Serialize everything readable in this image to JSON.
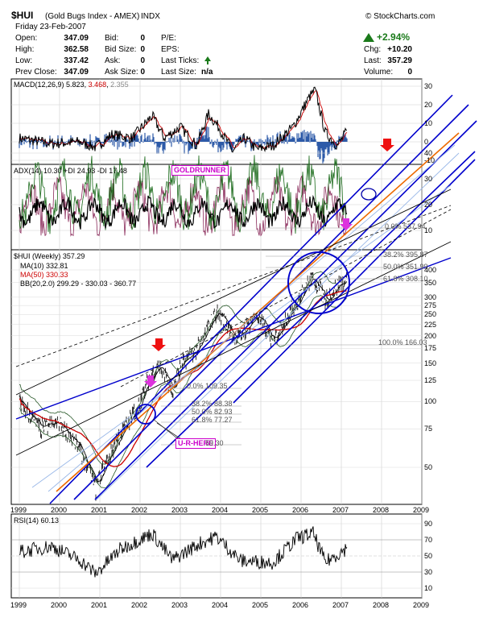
{
  "header": {
    "symbol": "$HUI",
    "name": "(Gold Bugs Index - AMEX)",
    "exchange": "INDX",
    "brand": "© StockCharts.com"
  },
  "quote": {
    "date": "Friday 23-Feb-2007",
    "rows": [
      [
        "Open:",
        "347.09",
        "Bid:",
        "0",
        "P/E:",
        ""
      ],
      [
        "High:",
        "362.58",
        "Bid Size:",
        "0",
        "EPS:",
        ""
      ],
      [
        "Low:",
        "337.42",
        "Ask:",
        "0",
        "Last Ticks:",
        ""
      ],
      [
        "Prev Close:",
        "347.09",
        "Ask Size:",
        "0",
        "Last Size:",
        "n/a"
      ]
    ],
    "change_pct": "+2.94%",
    "right_rows": [
      [
        "Chg:",
        "+10.20"
      ],
      [
        "Last:",
        "357.29"
      ],
      [
        "Volume:",
        "0"
      ]
    ],
    "colors": {
      "up": "#1a7a1a"
    }
  },
  "panels": {
    "macd": {
      "label_prefix": "MACD(12,26,9)",
      "v1": "5.823",
      "v2": "3.468",
      "v3": "2.355",
      "ticks": [
        30,
        20,
        10,
        0,
        -10
      ],
      "colors": {
        "macd": "#000000",
        "signal": "#cc0000",
        "hist": "#2d5aa8"
      }
    },
    "adx": {
      "label": "ADX(14) 10.30 +DI 24.93 -DI 17.48",
      "ticks": [
        40,
        30,
        20,
        10
      ],
      "colors": {
        "adx": "#000000",
        "plus_di": "#1a6a1a",
        "minus_di": "#8a2a5a"
      }
    },
    "price": {
      "label": "$HUI (Weekly) 357.29",
      "ma10": "MA(10) 332.81",
      "ma50": "MA(50) 330.33",
      "bb": "BB(20,2.0) 299.29 - 330.03 - 360.77",
      "ticks": [
        400,
        350,
        300,
        275,
        250,
        225,
        200,
        175,
        150,
        125,
        100,
        75,
        50
      ],
      "colors": {
        "price": "#000000",
        "ma10": "#000000",
        "ma50": "#cc0000",
        "bb": "#2a5a2a"
      }
    },
    "rsi": {
      "label": "RSI(14) 60.13",
      "ticks": [
        90,
        70,
        50,
        30,
        10
      ]
    }
  },
  "annotations": {
    "goldrunner": "GOLDRUNNER",
    "u_r_here": "U-R-HERE",
    "colors": {
      "tag": "#cc00cc",
      "channel": "#0000cc",
      "orange": "#ee6a00",
      "red_arrow": "#ee1111",
      "magenta_arrow": "#dd33dd"
    }
  },
  "fib_labels": [
    {
      "text": "0.0% 537.94"
    },
    {
      "text": "38.2% 395.87"
    },
    {
      "text": "50.0% 351.99"
    },
    {
      "text": "61.8% 308.10"
    },
    {
      "text": "100.0% 166.03"
    },
    {
      "text": "0.0% 109.35"
    },
    {
      "text": "38.2% 88.38"
    },
    {
      "text": "50.0% 82.93"
    },
    {
      "text": "61.8% 77.27"
    },
    {
      "text": "59.30"
    }
  ],
  "x_labels": [
    "1999",
    "2000",
    "2001",
    "2002",
    "2003",
    "2004",
    "2005",
    "2006",
    "2007",
    "2008",
    "2009"
  ],
  "chart_data": {
    "type": "line",
    "title": "$HUI (Gold Bugs Index - AMEX) INDX",
    "x_range": [
      "1999",
      "2009"
    ],
    "y_scale": "log",
    "y_range": [
      30,
      600
    ],
    "series": [
      {
        "name": "$HUI (Weekly)",
        "x": [
          1999.0,
          1999.5,
          2000.0,
          2000.5,
          2000.9,
          2001.3,
          2001.8,
          2002.0,
          2002.45,
          2002.8,
          2003.0,
          2003.5,
          2003.9,
          2004.2,
          2004.4,
          2004.9,
          2005.3,
          2005.9,
          2006.3,
          2006.6,
          2006.9,
          2007.15
        ],
        "y": [
          100,
          75,
          80,
          60,
          40,
          60,
          85,
          100,
          150,
          110,
          145,
          180,
          260,
          220,
          190,
          250,
          185,
          290,
          370,
          290,
          340,
          357
        ]
      },
      {
        "name": "RSI(14)",
        "x": [
          1999.0,
          1999.8,
          2000.5,
          2000.9,
          2001.5,
          2002.3,
          2002.8,
          2003.5,
          2003.9,
          2004.5,
          2005.3,
          2005.9,
          2006.3,
          2006.6,
          2007.15
        ],
        "y": [
          55,
          62,
          45,
          28,
          58,
          78,
          45,
          66,
          74,
          44,
          42,
          72,
          78,
          42,
          60.13
        ]
      }
    ]
  }
}
